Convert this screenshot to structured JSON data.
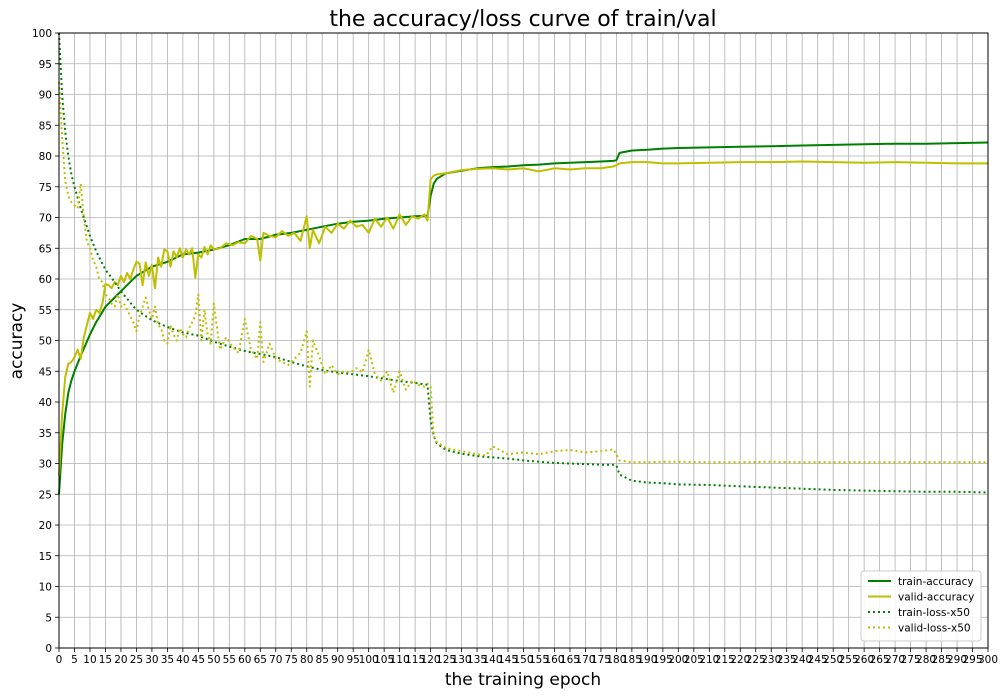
{
  "chart_data": {
    "type": "line",
    "title": "the accuracy/loss curve of train/val",
    "xlabel": "the training epoch",
    "ylabel": "accuracy",
    "xlim": [
      0,
      300
    ],
    "ylim": [
      0,
      100
    ],
    "xticks": [
      0,
      5,
      10,
      15,
      20,
      25,
      30,
      35,
      40,
      45,
      50,
      55,
      60,
      65,
      70,
      75,
      80,
      85,
      90,
      95,
      100,
      105,
      110,
      115,
      120,
      125,
      130,
      135,
      140,
      145,
      150,
      155,
      160,
      165,
      170,
      175,
      180,
      185,
      190,
      195,
      200,
      205,
      210,
      215,
      220,
      225,
      230,
      235,
      240,
      245,
      250,
      255,
      260,
      265,
      270,
      275,
      280,
      285,
      290,
      295,
      300
    ],
    "yticks": [
      0,
      5,
      10,
      15,
      20,
      25,
      30,
      35,
      40,
      45,
      50,
      55,
      60,
      65,
      70,
      75,
      80,
      85,
      90,
      95,
      100
    ],
    "grid": true,
    "legend_position": "lower-right",
    "series": [
      {
        "name": "train-accuracy",
        "color": "#008000",
        "style": "solid",
        "x": [
          0,
          1,
          2,
          3,
          4,
          5,
          7,
          10,
          12,
          15,
          18,
          20,
          25,
          30,
          35,
          40,
          45,
          50,
          55,
          60,
          65,
          70,
          75,
          80,
          85,
          90,
          95,
          100,
          105,
          110,
          115,
          119,
          120,
          121,
          122,
          125,
          130,
          135,
          140,
          145,
          150,
          155,
          160,
          165,
          170,
          175,
          179,
          180,
          181,
          185,
          190,
          195,
          200,
          210,
          220,
          230,
          240,
          250,
          260,
          270,
          280,
          290,
          300
        ],
        "values": [
          25,
          33,
          38,
          41.5,
          43.5,
          45,
          47.5,
          51,
          53,
          55.5,
          57,
          58,
          60.5,
          62,
          62.8,
          64,
          64.3,
          64.8,
          65.5,
          66.5,
          66.5,
          67.2,
          67.5,
          68,
          68.5,
          69,
          69.3,
          69.5,
          69.8,
          70,
          70.2,
          70.3,
          73.5,
          75.5,
          76.3,
          77.2,
          77.6,
          78,
          78.2,
          78.3,
          78.5,
          78.6,
          78.8,
          78.9,
          79,
          79.1,
          79.2,
          79.3,
          80.5,
          80.9,
          81,
          81.2,
          81.3,
          81.4,
          81.5,
          81.6,
          81.7,
          81.8,
          81.9,
          82,
          82,
          82.1,
          82.2
        ]
      },
      {
        "name": "valid-accuracy",
        "color": "#bfbf00",
        "style": "solid",
        "x": [
          0,
          1,
          2,
          3,
          4,
          5,
          6,
          7,
          8,
          9,
          10,
          11,
          12,
          13,
          14,
          15,
          16,
          17,
          18,
          19,
          20,
          21,
          22,
          23,
          24,
          25,
          26,
          27,
          28,
          29,
          30,
          31,
          32,
          33,
          34,
          35,
          36,
          37,
          38,
          39,
          40,
          41,
          42,
          43,
          44,
          45,
          46,
          47,
          48,
          49,
          50,
          52,
          54,
          56,
          58,
          60,
          62,
          64,
          65,
          66,
          68,
          70,
          72,
          74,
          76,
          78,
          80,
          81,
          82,
          84,
          86,
          88,
          90,
          92,
          94,
          96,
          98,
          100,
          102,
          104,
          106,
          108,
          110,
          112,
          114,
          116,
          118,
          119,
          120,
          121,
          122,
          125,
          130,
          135,
          140,
          145,
          150,
          155,
          160,
          165,
          170,
          175,
          179,
          180,
          181,
          185,
          190,
          195,
          200,
          210,
          220,
          230,
          240,
          250,
          260,
          270,
          280,
          290,
          300
        ],
        "values": [
          28,
          38,
          44,
          46.2,
          46.5,
          47.3,
          48.5,
          47,
          50.5,
          52.5,
          54.5,
          53.5,
          55,
          54.5,
          56,
          59.2,
          59,
          58.5,
          59.5,
          59,
          60.5,
          59.5,
          61,
          60,
          61.5,
          62.8,
          62.5,
          59,
          62.7,
          60.5,
          62.3,
          58.5,
          63.5,
          62,
          64.8,
          64.5,
          62,
          64.5,
          63.5,
          65,
          63.5,
          64.8,
          64,
          65,
          60.2,
          64,
          63.5,
          65.2,
          64,
          65.5,
          64.8,
          65,
          65.8,
          65.5,
          66,
          65.8,
          67,
          66.5,
          63,
          67.5,
          67,
          66.8,
          67.8,
          67,
          67.5,
          66.2,
          70.2,
          65,
          68,
          65.8,
          68.5,
          67.5,
          69,
          68.2,
          69.5,
          68.5,
          68.8,
          67.5,
          69.8,
          68.5,
          70,
          68.2,
          70.5,
          68.8,
          70.2,
          69.8,
          70.5,
          69.5,
          76.2,
          76.8,
          77,
          77.2,
          77.7,
          77.9,
          78,
          77.8,
          78,
          77.5,
          78,
          77.8,
          78,
          78,
          78.3,
          78.5,
          78.8,
          79,
          79,
          78.8,
          78.8,
          78.9,
          79,
          79,
          79.1,
          79,
          78.9,
          79,
          78.9,
          78.8,
          78.8
        ]
      },
      {
        "name": "train-loss-x50",
        "color": "#008000",
        "style": "dotted",
        "x": [
          0,
          1,
          2,
          3,
          4,
          5,
          7,
          10,
          12,
          15,
          18,
          20,
          25,
          30,
          35,
          40,
          45,
          50,
          55,
          60,
          65,
          70,
          75,
          80,
          85,
          90,
          95,
          100,
          105,
          110,
          115,
          119,
          120,
          121,
          122,
          125,
          130,
          135,
          140,
          145,
          150,
          155,
          160,
          165,
          170,
          175,
          179,
          180,
          181,
          185,
          190,
          195,
          200,
          210,
          220,
          230,
          240,
          250,
          260,
          270,
          280,
          290,
          300
        ],
        "values": [
          100,
          90,
          84,
          80,
          77,
          75,
          71.5,
          67,
          64.5,
          61.5,
          59.5,
          58,
          55,
          53.3,
          52.2,
          51.3,
          50.8,
          49.8,
          49,
          48.3,
          47.8,
          47.3,
          46.5,
          45.8,
          45.2,
          44.8,
          44.5,
          44.2,
          43.8,
          43.4,
          43.1,
          42.8,
          37,
          34.5,
          33.3,
          32.2,
          31.6,
          31.2,
          31,
          30.8,
          30.5,
          30.3,
          30.1,
          30,
          29.9,
          29.8,
          29.8,
          29.7,
          28.2,
          27.2,
          26.9,
          26.8,
          26.6,
          26.5,
          26.3,
          26.1,
          25.9,
          25.7,
          25.6,
          25.5,
          25.4,
          25.4,
          25.3
        ]
      },
      {
        "name": "valid-loss-x50",
        "color": "#bfbf00",
        "style": "dotted",
        "x": [
          0,
          1,
          2,
          3,
          4,
          5,
          6,
          7,
          8,
          9,
          10,
          11,
          12,
          13,
          14,
          15,
          16,
          17,
          18,
          19,
          20,
          21,
          22,
          23,
          24,
          25,
          26,
          27,
          28,
          29,
          30,
          31,
          32,
          33,
          34,
          35,
          36,
          37,
          38,
          39,
          40,
          41,
          42,
          43,
          44,
          45,
          46,
          47,
          48,
          49,
          50,
          52,
          54,
          56,
          58,
          60,
          62,
          64,
          65,
          66,
          68,
          70,
          72,
          74,
          76,
          78,
          80,
          81,
          82,
          84,
          86,
          88,
          90,
          92,
          94,
          96,
          98,
          100,
          102,
          104,
          106,
          108,
          110,
          112,
          114,
          116,
          118,
          119,
          120,
          121,
          122,
          125,
          130,
          135,
          138,
          140,
          145,
          150,
          155,
          160,
          165,
          170,
          175,
          179,
          180,
          181,
          185,
          190,
          195,
          200,
          210,
          220,
          230,
          240,
          250,
          260,
          270,
          280,
          290,
          300
        ],
        "values": [
          92,
          83,
          76,
          73.5,
          72.5,
          72,
          71.5,
          75.5,
          70,
          66,
          65,
          63,
          62,
          60,
          59.5,
          57.5,
          57,
          56,
          55.5,
          57.5,
          55.5,
          56,
          55,
          54,
          53,
          51.5,
          54,
          55.5,
          57,
          55,
          53.5,
          55.5,
          52.5,
          52,
          50,
          49.5,
          52.5,
          51,
          50,
          52,
          51,
          50.5,
          52,
          53,
          54,
          57.5,
          50,
          55,
          51,
          49.5,
          56,
          48.5,
          50.5,
          49,
          48,
          53.5,
          48.5,
          47,
          53,
          46.5,
          49.5,
          47,
          46.5,
          46,
          47,
          48,
          51.5,
          42.5,
          50,
          47.5,
          44.5,
          46,
          44.5,
          45,
          44.8,
          45.5,
          44.8,
          48.5,
          44.5,
          43.5,
          45,
          41.5,
          45,
          42,
          43.5,
          42.8,
          42.5,
          43,
          42.5,
          34.5,
          33.5,
          32.5,
          32,
          31.5,
          31.3,
          32.8,
          31.5,
          31.8,
          31.5,
          32,
          32.2,
          31.8,
          32,
          32.3,
          31.5,
          30.5,
          30.2,
          30.2,
          30.3,
          30.3,
          30.2,
          30.2,
          30.3,
          30.2,
          30.2,
          30.2,
          30.2,
          30.2,
          30.2,
          30.2
        ]
      }
    ]
  }
}
